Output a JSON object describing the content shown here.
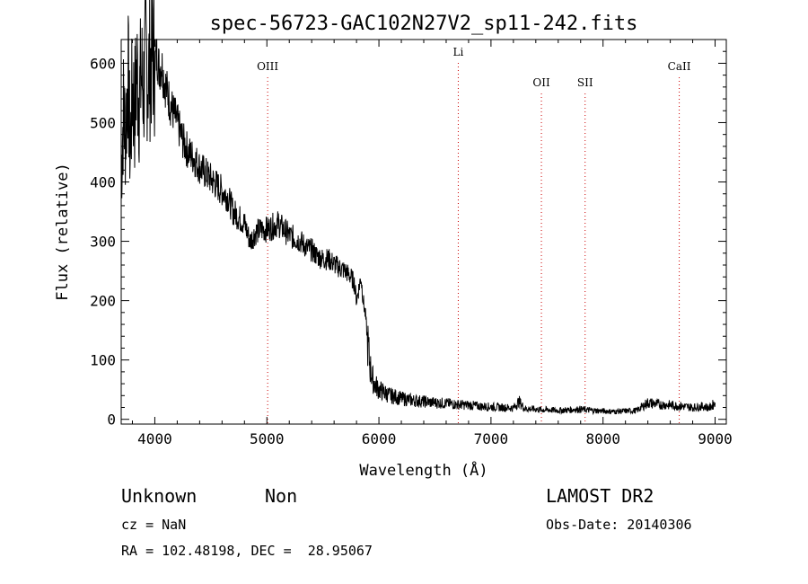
{
  "chart_data": {
    "type": "line",
    "title": "spec-56723-GAC102N27V2_sp11-242.fits",
    "xlabel": "Wavelength (Å)",
    "ylabel": "Flux (relative)",
    "xlim": [
      3700,
      9100
    ],
    "ylim": [
      -8,
      640
    ],
    "x_ticks": [
      4000,
      5000,
      6000,
      7000,
      8000,
      9000
    ],
    "y_ticks": [
      0,
      100,
      200,
      300,
      400,
      500,
      600
    ],
    "line_color": "#000000",
    "marker_color": "#cc0000",
    "spectral_lines": [
      {
        "name": "OIII",
        "wavelength": 5007
      },
      {
        "name": "Li",
        "wavelength": 6708
      },
      {
        "name": "OII",
        "wavelength": 7450
      },
      {
        "name": "SII",
        "wavelength": 7840
      },
      {
        "name": "CaII",
        "wavelength": 8680
      }
    ],
    "series": [
      {
        "x": [
          3700,
          3720,
          3740,
          3760,
          3780,
          3800,
          3820,
          3840,
          3860,
          3880,
          3900,
          3920,
          3940,
          3960,
          3980,
          4000,
          4020,
          4040,
          4060,
          4080,
          4100,
          4120,
          4140,
          4160,
          4180,
          4200,
          4250,
          4300,
          4350,
          4400,
          4450,
          4500,
          4550,
          4600,
          4650,
          4700,
          4750,
          4800,
          4850,
          4900,
          4950,
          5000,
          5050,
          5100,
          5150,
          5200,
          5250,
          5300,
          5350,
          5400,
          5450,
          5500,
          5550,
          5600,
          5650,
          5700,
          5750,
          5780,
          5800,
          5820,
          5840,
          5860,
          5880,
          5900,
          5920,
          5940,
          5960,
          6000,
          6050,
          6100,
          6150,
          6200,
          6300,
          6400,
          6500,
          6600,
          6700,
          6800,
          6900,
          7000,
          7100,
          7200,
          7250,
          7300,
          7400,
          7450,
          7500,
          7600,
          7700,
          7800,
          7900,
          8000,
          8100,
          8200,
          8300,
          8400,
          8500,
          8600,
          8700,
          8800,
          8900,
          8950,
          9000
        ],
        "y": [
          420,
          520,
          480,
          590,
          450,
          560,
          520,
          590,
          540,
          580,
          560,
          610,
          580,
          600,
          620,
          600,
          615,
          590,
          600,
          575,
          560,
          545,
          530,
          520,
          510,
          500,
          470,
          450,
          440,
          425,
          415,
          405,
          395,
          385,
          375,
          350,
          340,
          330,
          300,
          315,
          320,
          320,
          325,
          330,
          320,
          310,
          305,
          300,
          290,
          285,
          275,
          270,
          270,
          262,
          255,
          250,
          240,
          230,
          200,
          220,
          240,
          200,
          175,
          130,
          90,
          70,
          60,
          50,
          45,
          40,
          38,
          35,
          32,
          30,
          28,
          27,
          25,
          24,
          22,
          21,
          20,
          19,
          30,
          18,
          17,
          16,
          16,
          15,
          16,
          17,
          15,
          14,
          13,
          14,
          15,
          28,
          25,
          24,
          22,
          20,
          22,
          19,
          28
        ]
      }
    ]
  },
  "info": {
    "class": "Unknown",
    "subclass": "Non",
    "survey": "LAMOST DR2",
    "cz": "cz = NaN",
    "obs_date": "Obs-Date: 20140306",
    "coords": "RA = 102.48198, DEC =  28.95067"
  }
}
